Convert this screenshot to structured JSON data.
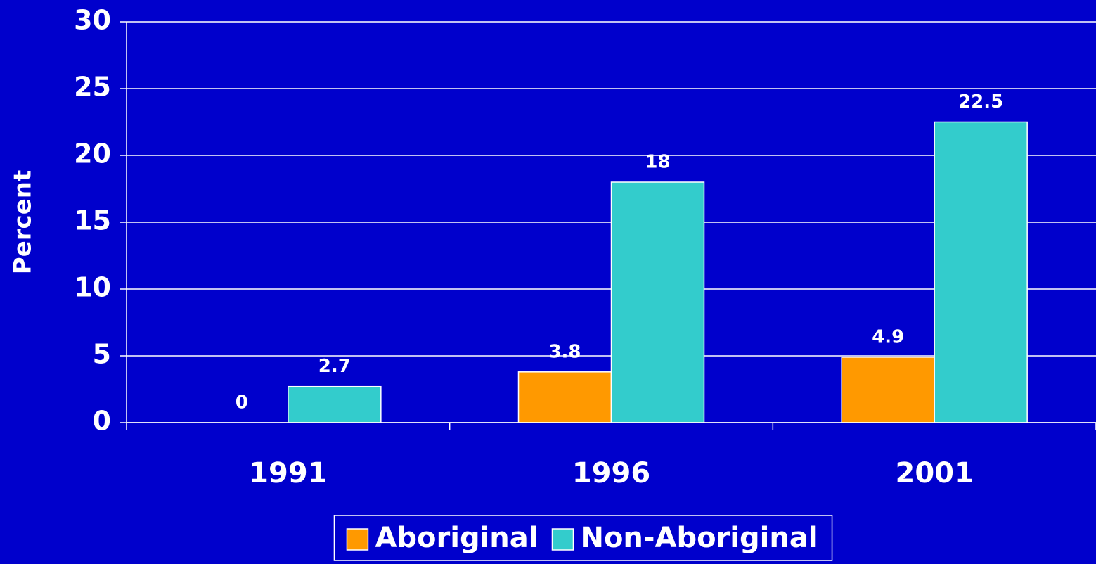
{
  "chart_data": {
    "type": "bar",
    "y_label": "Percent",
    "categories": [
      "1991",
      "1996",
      "2001"
    ],
    "series": [
      {
        "name": "Aboriginal",
        "color": "#ff9900",
        "values": [
          0,
          3.8,
          4.9
        ]
      },
      {
        "name": "Non-Aboriginal",
        "color": "#33cccc",
        "values": [
          2.7,
          18,
          22.5
        ]
      }
    ],
    "ylim": [
      0,
      30
    ],
    "yticks": [
      0,
      5,
      10,
      15,
      20,
      25,
      30
    ],
    "grid": true,
    "legend": "bottom"
  }
}
